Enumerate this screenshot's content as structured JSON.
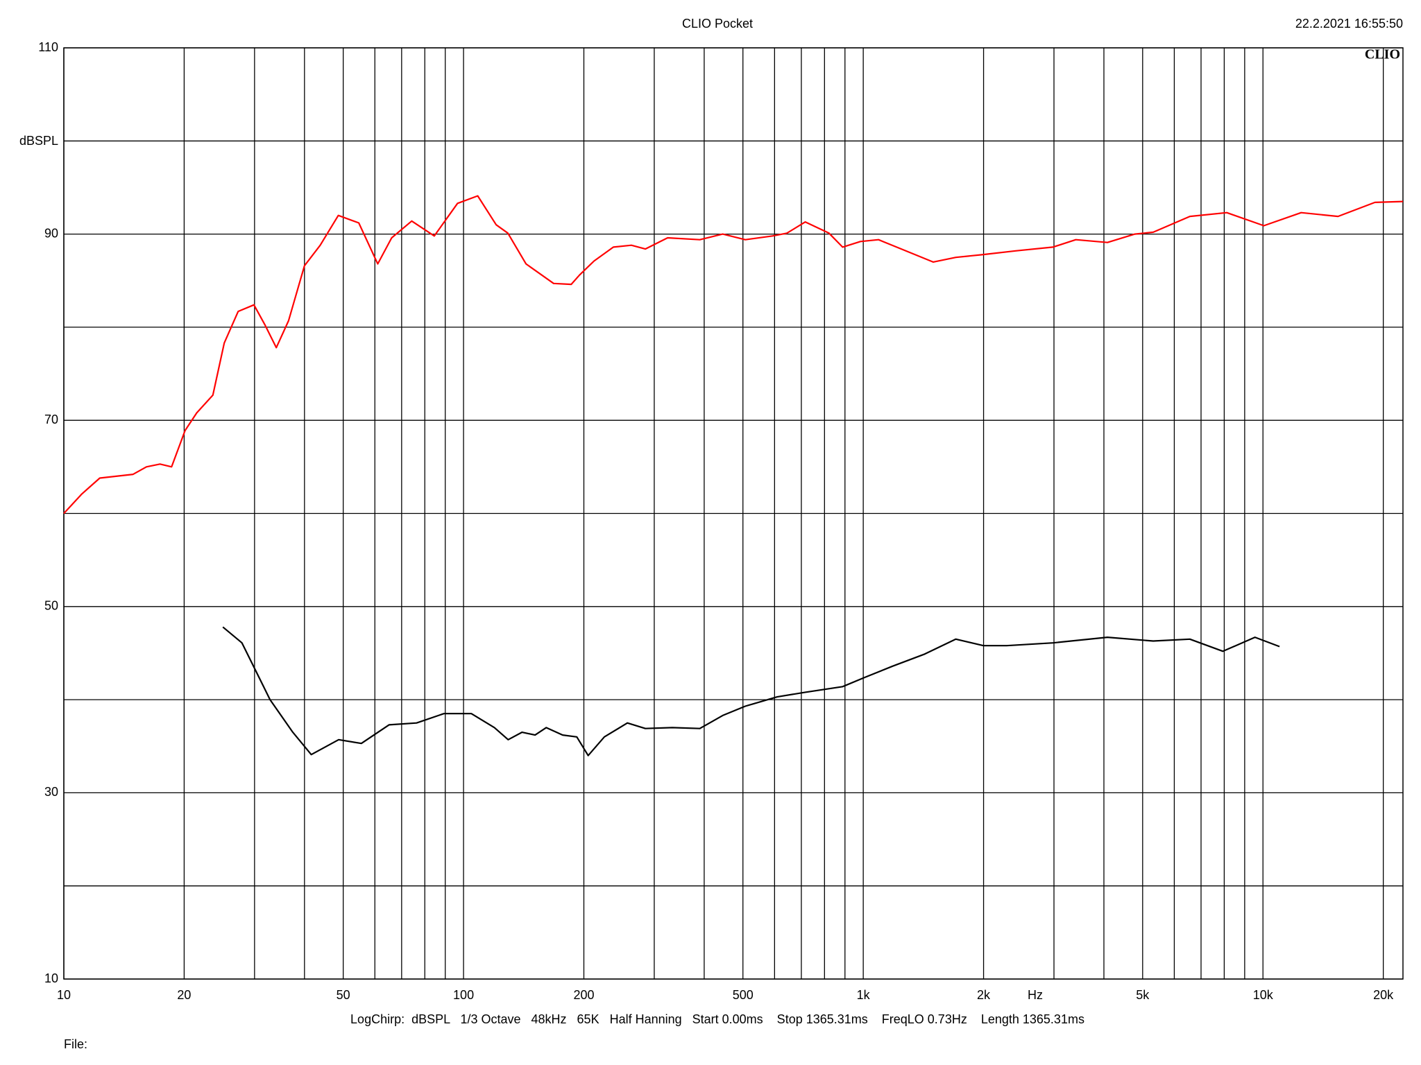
{
  "chart_data": {
    "type": "line",
    "title": "CLIO Pocket",
    "timestamp": "22.2.2021 16:55:50",
    "logo": "CLIO",
    "y_label": "dBSPL",
    "x_label": "Hz",
    "settings_line": "LogChirp:  dBSPL   1/3 Octave   48kHz   65K   Half Hanning   Start 0.00ms    Stop 1365.31ms    FreqLO 0.73Hz    Length 1365.31ms",
    "file_label": "File:",
    "xscale": "log",
    "grid": true,
    "xlim": [
      10,
      22400
    ],
    "ylim": [
      10,
      110
    ],
    "yticks": [
      10,
      30,
      50,
      70,
      90,
      110
    ],
    "y_minor_grid": [
      20,
      40,
      60,
      80,
      100
    ],
    "xticks": [
      10,
      20,
      50,
      100,
      200,
      500,
      {
        "value": 1000,
        "label": "1k"
      },
      {
        "value": 2000,
        "label": "2k"
      },
      {
        "value": 5000,
        "label": "5k"
      },
      {
        "value": 10000,
        "label": "10k"
      },
      {
        "value": 20000,
        "label": "20k"
      }
    ],
    "x_minor_grid": [
      30,
      40,
      60,
      70,
      80,
      90,
      300,
      400,
      600,
      700,
      800,
      900,
      3000,
      4000,
      6000,
      7000,
      8000,
      9000
    ],
    "series": [
      {
        "color": "#ff0000",
        "x": [
          10,
          11.1,
          12.3,
          14.9,
          16.1,
          17.4,
          18.6,
          20.1,
          21.5,
          23.6,
          25.2,
          27.3,
          29.9,
          31.9,
          34,
          36.5,
          40,
          43.8,
          48.6,
          54.7,
          61,
          66.1,
          74.2,
          84.5,
          96.6,
          108.5,
          120.7,
          129.1,
          143.3,
          168,
          186,
          195,
          212,
          237,
          263,
          285,
          324,
          390,
          445,
          507,
          593,
          644,
          716,
          821,
          888,
          984,
          1092,
          1245,
          1496,
          1705,
          1999,
          2405,
          2982,
          3402,
          4083,
          4780,
          5315,
          6563,
          8120,
          10050,
          12460,
          15410,
          19060,
          22400
        ],
        "values": [
          60.0,
          62.1,
          63.8,
          64.2,
          65.0,
          65.3,
          65.0,
          68.9,
          70.8,
          72.7,
          78.3,
          81.7,
          82.4,
          80.2,
          77.8,
          80.7,
          86.6,
          88.8,
          92.0,
          91.2,
          86.8,
          89.6,
          91.4,
          89.8,
          93.3,
          94.1,
          91.0,
          90.1,
          86.8,
          84.7,
          84.6,
          85.6,
          87.1,
          88.6,
          88.8,
          88.4,
          89.6,
          89.4,
          90.0,
          89.4,
          89.8,
          90.1,
          91.3,
          90.1,
          88.6,
          89.2,
          89.4,
          88.4,
          87.0,
          87.5,
          87.8,
          88.2,
          88.6,
          89.4,
          89.1,
          90.0,
          90.2,
          91.9,
          92.3,
          90.9,
          92.3,
          91.9,
          93.4,
          93.5
        ]
      },
      {
        "color": "#000000",
        "x": [
          25,
          27.9,
          32.8,
          37.4,
          41.6,
          48.7,
          55.5,
          65.1,
          76.3,
          89.3,
          104.6,
          119.5,
          129.3,
          140,
          151,
          161,
          177,
          192,
          205,
          225,
          257,
          285,
          333,
          390,
          445,
          507,
          609,
          716,
          888,
          1010,
          1184,
          1425,
          1705,
          1999,
          2283,
          2982,
          4083,
          5315,
          6563,
          7940,
          9550,
          11000
        ],
        "values": [
          47.8,
          46.1,
          40.0,
          36.5,
          34.1,
          35.7,
          35.3,
          37.3,
          37.5,
          38.5,
          38.5,
          37.0,
          35.7,
          36.5,
          36.2,
          37.0,
          36.2,
          36.0,
          34.0,
          36.0,
          37.5,
          36.9,
          37.0,
          36.9,
          38.3,
          39.3,
          40.3,
          40.8,
          41.4,
          42.4,
          43.6,
          44.9,
          46.5,
          45.8,
          45.8,
          46.1,
          46.7,
          46.3,
          46.5,
          45.2,
          46.7,
          45.7
        ]
      }
    ]
  }
}
